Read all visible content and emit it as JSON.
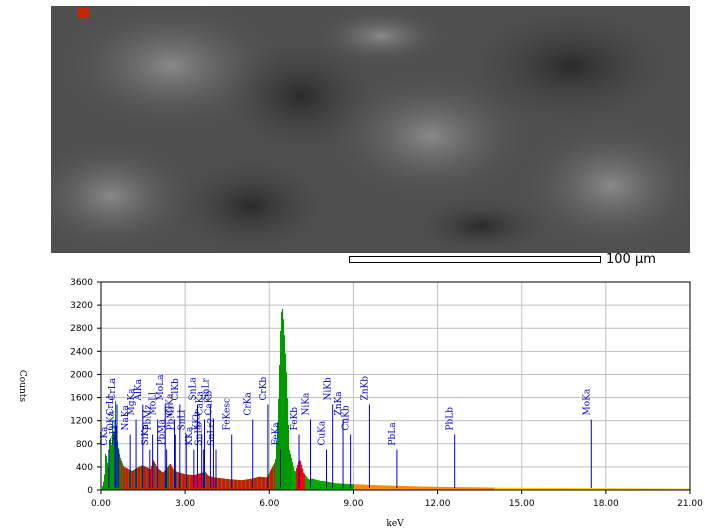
{
  "image": {
    "scale_label": "100 µm"
  },
  "chart_data": {
    "type": "area",
    "xlabel": "keV",
    "ylabel": "Counts",
    "xlim": [
      0,
      21
    ],
    "ylim": [
      0,
      3600
    ],
    "x_ticks": [
      "0.00",
      "3.00",
      "6.00",
      "9.00",
      "12.00",
      "15.00",
      "18.00",
      "21.00"
    ],
    "y_ticks": [
      "0",
      "400",
      "800",
      "1200",
      "1600",
      "2000",
      "2400",
      "2800",
      "3200",
      "3600"
    ],
    "grid": true,
    "colors": {
      "background_region": "#ff0000",
      "mid_region": "#00aa00",
      "major_peaks": "#009900",
      "high_energy": "#ffcc00",
      "tail": "#ff8800",
      "marker": "#0000cc"
    },
    "series": [
      {
        "x": [
          0.0,
          0.1,
          0.15,
          0.2,
          0.25,
          0.28,
          0.3,
          0.35,
          0.4,
          0.45,
          0.5,
          0.55,
          0.6,
          0.65,
          0.7,
          0.8,
          0.9,
          1.0,
          1.1,
          1.25,
          1.4,
          1.5,
          1.6,
          1.75,
          1.85,
          2.0,
          2.2,
          2.3,
          2.45,
          2.6,
          2.8,
          3.0,
          3.3,
          3.6,
          3.7,
          3.8,
          4.0,
          4.5,
          5.0,
          5.4,
          5.6,
          5.9,
          6.2,
          6.3,
          6.4,
          6.45,
          6.5,
          6.6,
          6.7,
          6.9,
          7.0,
          7.05,
          7.1,
          7.2,
          7.4,
          7.5,
          7.8,
          8.0,
          8.3,
          8.6,
          9.0,
          10.0,
          11.0,
          12.0,
          13.0,
          14.0,
          15.0,
          16.0,
          17.0,
          18.0,
          19.0,
          20.0,
          21.0
        ],
        "y": [
          0,
          200,
          700,
          500,
          400,
          800,
          1050,
          700,
          1300,
          800,
          1550,
          900,
          750,
          600,
          520,
          400,
          380,
          350,
          330,
          380,
          420,
          420,
          400,
          360,
          520,
          380,
          300,
          360,
          460,
          330,
          300,
          270,
          260,
          300,
          320,
          250,
          220,
          190,
          170,
          200,
          230,
          220,
          500,
          1400,
          3050,
          3150,
          2900,
          2000,
          700,
          300,
          450,
          520,
          500,
          300,
          180,
          200,
          160,
          150,
          120,
          110,
          100,
          80,
          65,
          55,
          48,
          42,
          38,
          35,
          32,
          30,
          28,
          26,
          24
        ]
      }
    ],
    "peak_labels": [
      {
        "label": "CKa",
        "x": 0.28
      },
      {
        "label": "OKa",
        "x": 0.52
      },
      {
        "label": "CrLl",
        "x": 0.5
      },
      {
        "label": "CrLa",
        "x": 0.57
      },
      {
        "label": "FeLl",
        "x": 0.63
      },
      {
        "label": "NaKa",
        "x": 1.04
      },
      {
        "label": "MgKa",
        "x": 1.25
      },
      {
        "label": "AlKa",
        "x": 1.49
      },
      {
        "label": "SiKa",
        "x": 1.74
      },
      {
        "label": "PbMz",
        "x": 1.84
      },
      {
        "label": "MoLl",
        "x": 2.02
      },
      {
        "label": "MoLa",
        "x": 2.29
      },
      {
        "label": "PbMa",
        "x": 2.34
      },
      {
        "label": "PbMr",
        "x": 2.65
      },
      {
        "label": "ClKa",
        "x": 2.62
      },
      {
        "label": "ClKb",
        "x": 2.81
      },
      {
        "label": "KKa",
        "x": 3.31
      },
      {
        "label": "KKb",
        "x": 3.59
      },
      {
        "label": "CaKa",
        "x": 3.69
      },
      {
        "label": "SnLa",
        "x": 3.44
      },
      {
        "label": "SnLb",
        "x": 3.66
      },
      {
        "label": "SnLl",
        "x": 3.04
      },
      {
        "label": "CaKb",
        "x": 4.01
      },
      {
        "label": "SnLr",
        "x": 3.9
      },
      {
        "label": "SnLr2",
        "x": 4.1
      },
      {
        "label": "FeKesc",
        "x": 4.66
      },
      {
        "label": "CrKa",
        "x": 5.41
      },
      {
        "label": "CrKb",
        "x": 5.95
      },
      {
        "label": "FeKa",
        "x": 6.4
      },
      {
        "label": "FeKb",
        "x": 7.06
      },
      {
        "label": "NiKa",
        "x": 7.47
      },
      {
        "label": "NiKb",
        "x": 8.26
      },
      {
        "label": "CuKa",
        "x": 8.04
      },
      {
        "label": "CuKb",
        "x": 8.9
      },
      {
        "label": "ZnKa",
        "x": 8.63
      },
      {
        "label": "ZnKb",
        "x": 9.57
      },
      {
        "label": "PbLa",
        "x": 10.55
      },
      {
        "label": "PbLb",
        "x": 12.61
      },
      {
        "label": "MoKa",
        "x": 17.48
      }
    ]
  }
}
